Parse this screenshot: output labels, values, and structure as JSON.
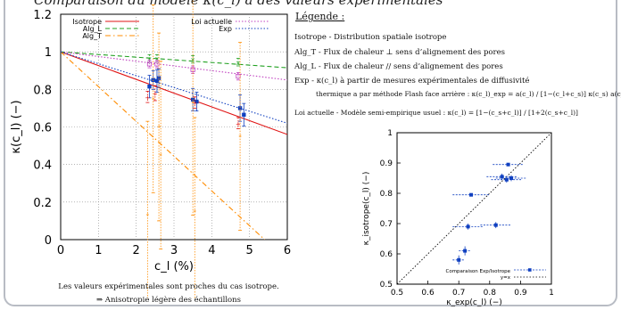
{
  "slide_title": "Comparaison du modèle κ(c_l) à des valeurs expérimentales",
  "legend_panel": {
    "title": "Légende :",
    "lines": [
      "Isotrope - Distribution spatiale isotrope",
      "Alg_T - Flux de chaleur ⊥ sens d’alignement des pores",
      "Alg_L - Flux de chaleur // sens d’alignement des pores",
      "Exp - κ(c_l) à partir de mesures expérimentales de diffusivité",
      "thermique a par méthode Flash face arrière : κ(c_l)_exp = a(c_l) / [1−(c_l+c_s)] κ(c_s) a(c_l=0)",
      "Loi actuelle - Modèle semi-empirique usuel : κ(c_l) = [1−(c_s+c_l)] / [1+2(c_s+c_l)]"
    ]
  },
  "notes": {
    "line1": "Les valeurs expérimentales sont proches du cas isotrope.",
    "line2": "⇒ Anisotropie légère des échantillons"
  },
  "chart_data": [
    {
      "type": "line",
      "xlabel": "c_l (%)",
      "ylabel": "κ(c_l) (−)",
      "xlim": [
        0,
        6
      ],
      "ylim": [
        0,
        1.2
      ],
      "x_ticks": [
        "0",
        "1",
        "2",
        "3",
        "4",
        "5",
        "6"
      ],
      "y_ticks": [
        "0",
        "0.2",
        "0.4",
        "0.6",
        "0.8",
        "1",
        "1.2"
      ],
      "grid": true,
      "legend_position": "top",
      "series": [
        {
          "name": "Isotrope",
          "color": "#e01414",
          "style": "solid",
          "points": [
            [
              0,
              1.0
            ],
            [
              6,
              0.56
            ]
          ]
        },
        {
          "name": "Alg_L",
          "color": "#20a020",
          "style": "dashed",
          "points": [
            [
              0,
              1.0
            ],
            [
              6,
              0.915
            ]
          ]
        },
        {
          "name": "Alg_T",
          "color": "#ff8c00",
          "style": "dashdot",
          "points": [
            [
              0,
              1.0
            ],
            [
              5.4,
              0.0
            ]
          ]
        },
        {
          "name": "Loi actuelle",
          "color": "#c040c0",
          "style": "dotted",
          "points": [
            [
              0,
              1.0
            ],
            [
              6,
              0.85
            ]
          ]
        },
        {
          "name": "Exp",
          "color": "#1040c0",
          "style": "dotted",
          "points": [
            [
              0,
              1.0
            ],
            [
              6,
              0.62
            ]
          ]
        }
      ],
      "markers": [
        {
          "series": "Exp",
          "points": [
            [
              2.35,
              0.815,
              0.06
            ],
            [
              2.45,
              0.85,
              0.05
            ],
            [
              2.55,
              0.845,
              0.06
            ],
            [
              2.6,
              0.86,
              0.05
            ],
            [
              3.5,
              0.745,
              0.06
            ],
            [
              3.6,
              0.735,
              0.05
            ],
            [
              4.75,
              0.7,
              0.07
            ],
            [
              4.85,
              0.665,
              0.06
            ]
          ]
        },
        {
          "series": "Isotrope",
          "points": [
            [
              2.3,
              0.76,
              0.03
            ],
            [
              2.5,
              0.78,
              0.04
            ],
            [
              3.55,
              0.73,
              0.03
            ],
            [
              4.7,
              0.62,
              0.03
            ]
          ]
        },
        {
          "series": "Alg_L",
          "points": [
            [
              2.35,
              0.965,
              0.02
            ],
            [
              2.55,
              0.965,
              0.02
            ],
            [
              3.5,
              0.96,
              0.02
            ],
            [
              4.7,
              0.945,
              0.02
            ]
          ]
        },
        {
          "series": "Loi actuelle",
          "points": [
            [
              2.35,
              0.935,
              0.02
            ],
            [
              2.55,
              0.935,
              0.02
            ],
            [
              3.5,
              0.905,
              0.02
            ],
            [
              4.7,
              0.87,
              0.02
            ]
          ]
        },
        {
          "series": "Alg_T",
          "points": [
            [
              2.3,
              0.13,
              0.5
            ],
            [
              2.45,
              0.75,
              0.5
            ],
            [
              2.6,
              0.6,
              0.5
            ],
            [
              2.65,
              0.45,
              0.5
            ],
            [
              3.5,
              0.73,
              0.6
            ],
            [
              3.55,
              0.15,
              0.5
            ],
            [
              4.75,
              0.55,
              0.5
            ]
          ]
        }
      ]
    },
    {
      "type": "scatter",
      "xlabel": "κ_exp(c_l) (−)",
      "ylabel": "κ_isotrope(c_l) (−)",
      "xlim": [
        0.5,
        1.0
      ],
      "ylim": [
        0.5,
        1.0
      ],
      "x_ticks": [
        "0.5",
        "0.6",
        "0.7",
        "0.8",
        "0.9",
        "1"
      ],
      "y_ticks": [
        "0.5",
        "0.6",
        "0.7",
        "0.8",
        "0.9",
        "1"
      ],
      "grid": false,
      "legend_position": "bottom-right",
      "series": [
        {
          "name": "Comparaison Exp/Isotrope",
          "color": "#1040c0",
          "points": [
            [
              0.7,
              0.58,
              0.02,
              0.015
            ],
            [
              0.72,
              0.61,
              0.02,
              0.015
            ],
            [
              0.73,
              0.69,
              0.05,
              0.01
            ],
            [
              0.82,
              0.695,
              0.05,
              0.01
            ],
            [
              0.74,
              0.795,
              0.06,
              0.005
            ],
            [
              0.84,
              0.855,
              0.05,
              0.01
            ],
            [
              0.86,
              0.895,
              0.05,
              0.005
            ],
            [
              0.855,
              0.845,
              0.05,
              0.01
            ],
            [
              0.87,
              0.85,
              0.05,
              0.01
            ]
          ]
        },
        {
          "name": "y=x",
          "color": "#000000",
          "style": "dotted",
          "points": [
            [
              0.5,
              0.5
            ],
            [
              1.0,
              1.0
            ]
          ]
        }
      ]
    }
  ]
}
